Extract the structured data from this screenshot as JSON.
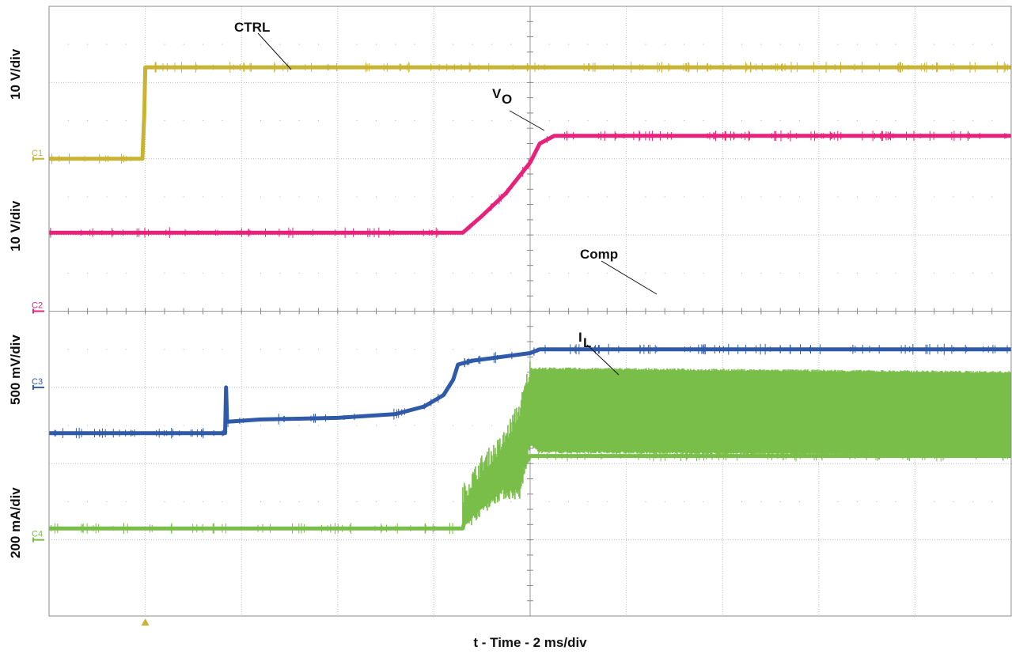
{
  "chart_data": {
    "type": "line",
    "title": "",
    "xlabel": "t - Time - 2 ms/div",
    "x_unit": "div",
    "xlim": [
      0,
      10
    ],
    "y_unit": "div",
    "ylim": [
      0,
      8
    ],
    "grid": true,
    "grid_divisions": {
      "x": 10,
      "y": 8
    },
    "trigger_marker": {
      "x": 1.0,
      "color": "#c8b432"
    },
    "channel_scales": [
      {
        "channel": "C1",
        "label": "10 V/div"
      },
      {
        "channel": "C2",
        "label": "10 V/div"
      },
      {
        "channel": "C3",
        "label": "500 mV/div"
      },
      {
        "channel": "C4",
        "label": "200 mA/div"
      }
    ],
    "series": [
      {
        "name": "CTRL",
        "channel": "C1",
        "color": "#c8b432",
        "baseline": 6.0,
        "x": [
          0,
          0.97,
          0.99,
          1.0,
          10
        ],
        "y": [
          6.0,
          6.0,
          6.6,
          7.2,
          7.2
        ]
      },
      {
        "name": "VO",
        "label_sub": "O",
        "channel": "C2",
        "color": "#e8217a",
        "baseline": 4.0,
        "x": [
          0,
          4.3,
          4.5,
          4.75,
          5.0,
          5.1,
          5.25,
          10
        ],
        "y": [
          5.03,
          5.03,
          5.25,
          5.55,
          5.95,
          6.2,
          6.3,
          6.3
        ]
      },
      {
        "name": "Comp",
        "channel": "C3",
        "color": "#2e5aa8",
        "baseline": 3.0,
        "x": [
          0,
          1.83,
          1.84,
          1.85,
          1.86,
          2.2,
          3.0,
          3.6,
          3.9,
          4.1,
          4.2,
          4.25,
          4.4,
          5.0,
          5.1,
          10
        ],
        "y": [
          2.4,
          2.4,
          3.0,
          2.55,
          2.55,
          2.58,
          2.6,
          2.65,
          2.75,
          2.9,
          3.1,
          3.3,
          3.35,
          3.45,
          3.5,
          3.5
        ]
      },
      {
        "name": "IL",
        "label_sub": "L",
        "channel": "C4",
        "color": "#78be49",
        "baseline": 1.0,
        "x": [
          0,
          4.3,
          4.32,
          4.6,
          4.9,
          5.0,
          10
        ],
        "y": [
          1.15,
          1.15,
          1.25,
          1.55,
          1.9,
          2.1,
          2.1
        ],
        "ripple_envelope": {
          "x": [
            4.3,
            4.5,
            4.7,
            4.9,
            5.0,
            5.1,
            10
          ],
          "upper": [
            1.6,
            2.0,
            2.25,
            2.75,
            3.25,
            3.25,
            3.2
          ],
          "lower": [
            1.15,
            1.4,
            1.6,
            1.6,
            2.25,
            2.15,
            2.1
          ]
        }
      }
    ]
  }
}
